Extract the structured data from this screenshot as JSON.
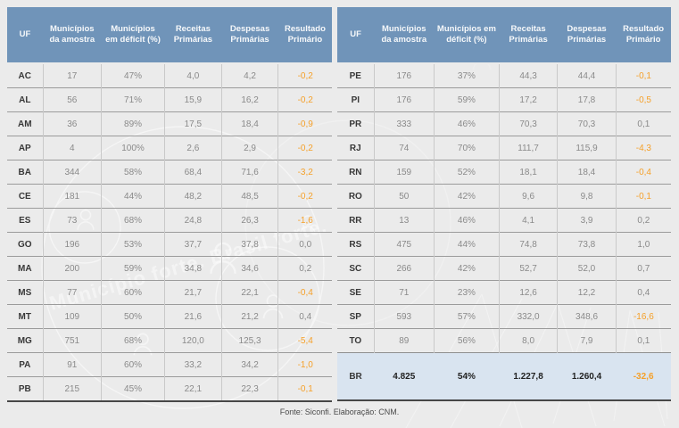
{
  "page": {
    "footer": "Fonte: Siconfi. Elaboração: CNM."
  },
  "colors": {
    "page_bg": "#EBEBEB",
    "header_bg": "#7094B9",
    "header_text": "#F6F8FA",
    "negative_value": "#F5A029",
    "totals_row_bg": "#D9E4F0",
    "row_separator": "#9B9B9B"
  },
  "columns": [
    "UF",
    "Municípios da amostra",
    "Municípios em déficit (%)",
    "Receitas Primárias",
    "Despesas Primárias",
    "Resultado Primário"
  ],
  "tables": {
    "left": {
      "rows": [
        [
          "AC",
          "17",
          "47%",
          "4,0",
          "4,2",
          "-0,2"
        ],
        [
          "AL",
          "56",
          "71%",
          "15,9",
          "16,2",
          "-0,2"
        ],
        [
          "AM",
          "36",
          "89%",
          "17,5",
          "18,4",
          "-0,9"
        ],
        [
          "AP",
          "4",
          "100%",
          "2,6",
          "2,9",
          "-0,2"
        ],
        [
          "BA",
          "344",
          "58%",
          "68,4",
          "71,6",
          "-3,2"
        ],
        [
          "CE",
          "181",
          "44%",
          "48,2",
          "48,5",
          "-0,2"
        ],
        [
          "ES",
          "73",
          "68%",
          "24,8",
          "26,3",
          "-1,6"
        ],
        [
          "GO",
          "196",
          "53%",
          "37,7",
          "37,8",
          "0,0"
        ],
        [
          "MA",
          "200",
          "59%",
          "34,8",
          "34,6",
          "0,2"
        ],
        [
          "MS",
          "77",
          "60%",
          "21,7",
          "22,1",
          "-0,4"
        ],
        [
          "MT",
          "109",
          "50%",
          "21,6",
          "21,2",
          "0,4"
        ],
        [
          "MG",
          "751",
          "68%",
          "120,0",
          "125,3",
          "-5,4"
        ],
        [
          "PA",
          "91",
          "60%",
          "33,2",
          "34,2",
          "-1,0"
        ],
        [
          "PB",
          "215",
          "45%",
          "22,1",
          "22,3",
          "-0,1"
        ]
      ]
    },
    "right": {
      "rows": [
        [
          "PE",
          "176",
          "37%",
          "44,3",
          "44,4",
          "-0,1"
        ],
        [
          "PI",
          "176",
          "59%",
          "17,2",
          "17,8",
          "-0,5"
        ],
        [
          "PR",
          "333",
          "46%",
          "70,3",
          "70,3",
          "0,1"
        ],
        [
          "RJ",
          "74",
          "70%",
          "111,7",
          "115,9",
          "-4,3"
        ],
        [
          "RN",
          "159",
          "52%",
          "18,1",
          "18,4",
          "-0,4"
        ],
        [
          "RO",
          "50",
          "42%",
          "9,6",
          "9,8",
          "-0,1"
        ],
        [
          "RR",
          "13",
          "46%",
          "4,1",
          "3,9",
          "0,2"
        ],
        [
          "RS",
          "475",
          "44%",
          "74,8",
          "73,8",
          "1,0"
        ],
        [
          "SC",
          "266",
          "42%",
          "52,7",
          "52,0",
          "0,7"
        ],
        [
          "SE",
          "71",
          "23%",
          "12,6",
          "12,2",
          "0,4"
        ],
        [
          "SP",
          "593",
          "57%",
          "332,0",
          "348,6",
          "-16,6"
        ],
        [
          "TO",
          "89",
          "56%",
          "8,0",
          "7,9",
          "0,1"
        ]
      ],
      "totals": [
        "BR",
        "4.825",
        "54%",
        "1.227,8",
        "1.260,4",
        "-32,6"
      ]
    }
  },
  "watermark": {
    "text": "Município forte. Brasil forte."
  },
  "chart_data": {
    "type": "table",
    "title": "Resultado primário dos municípios por UF",
    "columns": [
      "UF",
      "Municípios da amostra",
      "Municípios em déficit (%)",
      "Receitas Primárias",
      "Despesas Primárias",
      "Resultado Primário"
    ],
    "rows": [
      [
        "AC",
        "17",
        "47%",
        "4,0",
        "4,2",
        "-0,2"
      ],
      [
        "AL",
        "56",
        "71%",
        "15,9",
        "16,2",
        "-0,2"
      ],
      [
        "AM",
        "36",
        "89%",
        "17,5",
        "18,4",
        "-0,9"
      ],
      [
        "AP",
        "4",
        "100%",
        "2,6",
        "2,9",
        "-0,2"
      ],
      [
        "BA",
        "344",
        "58%",
        "68,4",
        "71,6",
        "-3,2"
      ],
      [
        "CE",
        "181",
        "44%",
        "48,2",
        "48,5",
        "-0,2"
      ],
      [
        "ES",
        "73",
        "68%",
        "24,8",
        "26,3",
        "-1,6"
      ],
      [
        "GO",
        "196",
        "53%",
        "37,7",
        "37,8",
        "0,0"
      ],
      [
        "MA",
        "200",
        "59%",
        "34,8",
        "34,6",
        "0,2"
      ],
      [
        "MS",
        "77",
        "60%",
        "21,7",
        "22,1",
        "-0,4"
      ],
      [
        "MT",
        "109",
        "50%",
        "21,6",
        "21,2",
        "0,4"
      ],
      [
        "MG",
        "751",
        "68%",
        "120,0",
        "125,3",
        "-5,4"
      ],
      [
        "PA",
        "91",
        "60%",
        "33,2",
        "34,2",
        "-1,0"
      ],
      [
        "PB",
        "215",
        "45%",
        "22,1",
        "22,3",
        "-0,1"
      ],
      [
        "PE",
        "176",
        "37%",
        "44,3",
        "44,4",
        "-0,1"
      ],
      [
        "PI",
        "176",
        "59%",
        "17,2",
        "17,8",
        "-0,5"
      ],
      [
        "PR",
        "333",
        "46%",
        "70,3",
        "70,3",
        "0,1"
      ],
      [
        "RJ",
        "74",
        "70%",
        "111,7",
        "115,9",
        "-4,3"
      ],
      [
        "RN",
        "159",
        "52%",
        "18,1",
        "18,4",
        "-0,4"
      ],
      [
        "RO",
        "50",
        "42%",
        "9,6",
        "9,8",
        "-0,1"
      ],
      [
        "RR",
        "13",
        "46%",
        "4,1",
        "3,9",
        "0,2"
      ],
      [
        "RS",
        "475",
        "44%",
        "74,8",
        "73,8",
        "1,0"
      ],
      [
        "SC",
        "266",
        "42%",
        "52,7",
        "52,0",
        "0,7"
      ],
      [
        "SE",
        "71",
        "23%",
        "12,6",
        "12,2",
        "0,4"
      ],
      [
        "SP",
        "593",
        "57%",
        "332,0",
        "348,6",
        "-16,6"
      ],
      [
        "TO",
        "89",
        "56%",
        "8,0",
        "7,9",
        "0,1"
      ],
      [
        "BR",
        "4.825",
        "54%",
        "1.227,8",
        "1.260,4",
        "-32,6"
      ]
    ],
    "totals_row": [
      "BR",
      "4.825",
      "54%",
      "1.227,8",
      "1.260,4",
      "-32,6"
    ],
    "source_note": "Fonte: Siconfi. Elaboração: CNM.",
    "layout": {
      "split_tables": 2,
      "negative_values_color": "#F5A029"
    }
  }
}
